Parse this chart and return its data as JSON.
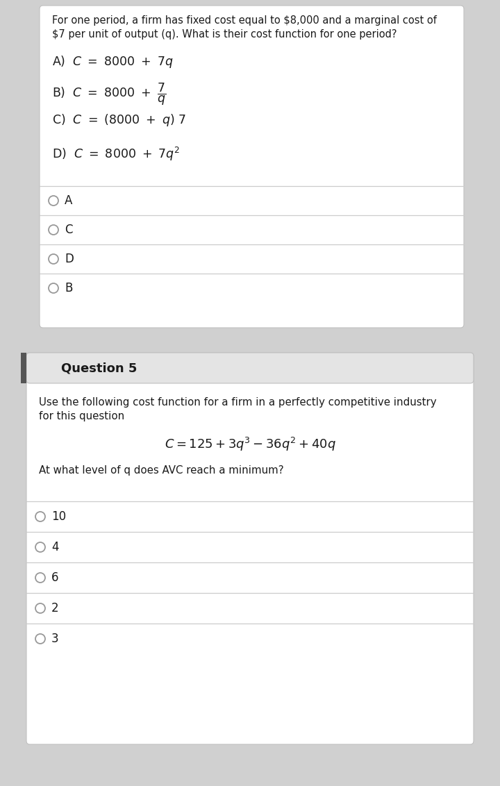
{
  "bg_color": "#d0d0d0",
  "card_bg": "#f0f0f0",
  "white_bg": "#ffffff",
  "text_color": "#1a1a1a",
  "line_color": "#cccccc",
  "q5_header_bg": "#e4e4e4",
  "q4_answer_choices": [
    "A",
    "C",
    "D",
    "B"
  ],
  "q5_answer_choices": [
    "10",
    "4",
    "6",
    "2",
    "3"
  ]
}
